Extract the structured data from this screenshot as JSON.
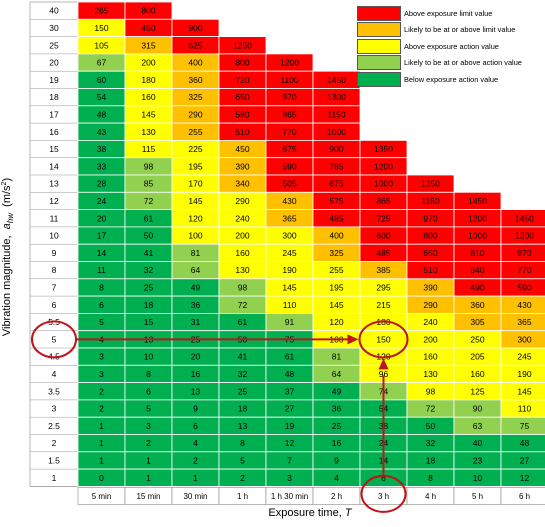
{
  "chart_data": {
    "type": "table",
    "title": "",
    "xlabel": "Exposure time,",
    "xlabel_var": "T",
    "ylabel": "Vibration magnitude,",
    "ylabel_var": "a",
    "ylabel_sub": "hw",
    "ylabel_unit_pre": "(m/s",
    "ylabel_unit_sup": "2",
    "ylabel_unit_post": ")",
    "x_categories": [
      "5 min",
      "15 min",
      "30 min",
      "1 h",
      "1 h 30 min",
      "2 h",
      "3 h",
      "4 h",
      "5 h",
      "6 h"
    ],
    "y_categories": [
      "40",
      "30",
      "25",
      "20",
      "19",
      "18",
      "17",
      "16",
      "15",
      "14",
      "13",
      "12",
      "11",
      "10",
      "9",
      "8",
      "7",
      "6",
      "5.5",
      "5",
      "4.5",
      "4",
      "3.5",
      "3",
      "2.5",
      "2",
      "1.5",
      "1"
    ],
    "cells": [
      [
        "265",
        "800",
        "",
        "",
        "",
        "",
        "",
        "",
        "",
        ""
      ],
      [
        "150",
        "450",
        "900",
        "",
        "",
        "",
        "",
        "",
        "",
        ""
      ],
      [
        "105",
        "315",
        "625",
        "1250",
        "",
        "",
        "",
        "",
        "",
        ""
      ],
      [
        "67",
        "200",
        "400",
        "800",
        "1200",
        "",
        "",
        "",
        "",
        ""
      ],
      [
        "60",
        "180",
        "360",
        "720",
        "1100",
        "1450",
        "",
        "",
        "",
        ""
      ],
      [
        "54",
        "160",
        "325",
        "650",
        "970",
        "1300",
        "",
        "",
        "",
        ""
      ],
      [
        "48",
        "145",
        "290",
        "580",
        "865",
        "1150",
        "",
        "",
        "",
        ""
      ],
      [
        "43",
        "130",
        "255",
        "510",
        "770",
        "1000",
        "",
        "",
        "",
        ""
      ],
      [
        "38",
        "115",
        "225",
        "450",
        "675",
        "900",
        "1350",
        "",
        "",
        ""
      ],
      [
        "33",
        "98",
        "195",
        "390",
        "590",
        "785",
        "1200",
        "",
        "",
        ""
      ],
      [
        "28",
        "85",
        "170",
        "340",
        "505",
        "675",
        "1000",
        "1350",
        "",
        ""
      ],
      [
        "24",
        "72",
        "145",
        "290",
        "430",
        "575",
        "865",
        "1150",
        "1450",
        ""
      ],
      [
        "20",
        "61",
        "120",
        "240",
        "365",
        "485",
        "725",
        "970",
        "1200",
        "1450"
      ],
      [
        "17",
        "50",
        "100",
        "200",
        "300",
        "400",
        "600",
        "800",
        "1000",
        "1200"
      ],
      [
        "14",
        "41",
        "81",
        "160",
        "245",
        "325",
        "485",
        "650",
        "810",
        "970"
      ],
      [
        "11",
        "32",
        "64",
        "130",
        "190",
        "255",
        "385",
        "510",
        "640",
        "770"
      ],
      [
        "8",
        "25",
        "49",
        "98",
        "145",
        "195",
        "295",
        "390",
        "490",
        "590"
      ],
      [
        "6",
        "18",
        "36",
        "72",
        "110",
        "145",
        "215",
        "290",
        "360",
        "430"
      ],
      [
        "5",
        "15",
        "31",
        "61",
        "91",
        "120",
        "180",
        "240",
        "305",
        "365"
      ],
      [
        "4",
        "13",
        "25",
        "50",
        "75",
        "100",
        "150",
        "200",
        "250",
        "300"
      ],
      [
        "3",
        "10",
        "20",
        "41",
        "61",
        "81",
        "120",
        "160",
        "205",
        "245"
      ],
      [
        "3",
        "8",
        "16",
        "32",
        "48",
        "64",
        "96",
        "130",
        "160",
        "190"
      ],
      [
        "2",
        "6",
        "13",
        "25",
        "37",
        "49",
        "74",
        "98",
        "125",
        "145"
      ],
      [
        "2",
        "5",
        "9",
        "18",
        "27",
        "36",
        "54",
        "72",
        "90",
        "110"
      ],
      [
        "1",
        "3",
        "6",
        "13",
        "19",
        "25",
        "38",
        "50",
        "63",
        "75"
      ],
      [
        "1",
        "2",
        "4",
        "8",
        "12",
        "16",
        "24",
        "32",
        "40",
        "48"
      ],
      [
        "1",
        "1",
        "2",
        "5",
        "7",
        "9",
        "14",
        "18",
        "23",
        "27"
      ],
      [
        "0",
        "1",
        "1",
        "2",
        "3",
        "4",
        "6",
        "8",
        "10",
        "12"
      ]
    ],
    "zones": [
      [
        "R",
        "R",
        "",
        "",
        "",
        "",
        "",
        "",
        "",
        ""
      ],
      [
        "Y",
        "R",
        "R",
        "",
        "",
        "",
        "",
        "",
        "",
        ""
      ],
      [
        "Y",
        "O",
        "R",
        "R",
        "",
        "",
        "",
        "",
        "",
        ""
      ],
      [
        "LG",
        "Y",
        "O",
        "R",
        "R",
        "",
        "",
        "",
        "",
        ""
      ],
      [
        "G",
        "Y",
        "O",
        "R",
        "R",
        "R",
        "",
        "",
        "",
        ""
      ],
      [
        "G",
        "Y",
        "O",
        "R",
        "R",
        "R",
        "",
        "",
        "",
        ""
      ],
      [
        "G",
        "Y",
        "O",
        "R",
        "R",
        "R",
        "",
        "",
        "",
        ""
      ],
      [
        "G",
        "Y",
        "O",
        "R",
        "R",
        "R",
        "",
        "",
        "",
        ""
      ],
      [
        "G",
        "Y",
        "Y",
        "O",
        "R",
        "R",
        "R",
        "",
        "",
        ""
      ],
      [
        "G",
        "LG",
        "Y",
        "O",
        "R",
        "R",
        "R",
        "",
        "",
        ""
      ],
      [
        "G",
        "LG",
        "Y",
        "O",
        "R",
        "R",
        "R",
        "R",
        "",
        ""
      ],
      [
        "G",
        "LG",
        "Y",
        "Y",
        "O",
        "R",
        "R",
        "R",
        "R",
        ""
      ],
      [
        "G",
        "G",
        "Y",
        "Y",
        "O",
        "R",
        "R",
        "R",
        "R",
        "R"
      ],
      [
        "G",
        "G",
        "Y",
        "Y",
        "Y",
        "O",
        "R",
        "R",
        "R",
        "R"
      ],
      [
        "G",
        "G",
        "LG",
        "Y",
        "Y",
        "O",
        "R",
        "R",
        "R",
        "R"
      ],
      [
        "G",
        "G",
        "LG",
        "Y",
        "Y",
        "Y",
        "O",
        "R",
        "R",
        "R"
      ],
      [
        "G",
        "G",
        "G",
        "LG",
        "Y",
        "Y",
        "Y",
        "O",
        "R",
        "R"
      ],
      [
        "G",
        "G",
        "G",
        "LG",
        "Y",
        "Y",
        "Y",
        "O",
        "O",
        "O"
      ],
      [
        "G",
        "G",
        "G",
        "G",
        "LG",
        "Y",
        "Y",
        "Y",
        "O",
        "O"
      ],
      [
        "G",
        "G",
        "G",
        "G",
        "G",
        "Y",
        "Y",
        "Y",
        "Y",
        "O"
      ],
      [
        "G",
        "G",
        "G",
        "G",
        "G",
        "LG",
        "Y",
        "Y",
        "Y",
        "Y"
      ],
      [
        "G",
        "G",
        "G",
        "G",
        "G",
        "LG",
        "Y",
        "Y",
        "Y",
        "Y"
      ],
      [
        "G",
        "G",
        "G",
        "G",
        "G",
        "G",
        "LG",
        "Y",
        "Y",
        "Y"
      ],
      [
        "G",
        "G",
        "G",
        "G",
        "G",
        "G",
        "G",
        "LG",
        "LG",
        "Y"
      ],
      [
        "G",
        "G",
        "G",
        "G",
        "G",
        "G",
        "G",
        "G",
        "LG",
        "LG"
      ],
      [
        "G",
        "G",
        "G",
        "G",
        "G",
        "G",
        "G",
        "G",
        "G",
        "G"
      ],
      [
        "G",
        "G",
        "G",
        "G",
        "G",
        "G",
        "G",
        "G",
        "G",
        "G"
      ],
      [
        "G",
        "G",
        "G",
        "G",
        "G",
        "G",
        "G",
        "G",
        "G",
        "G"
      ]
    ],
    "colors": {
      "R": "#ff0000",
      "O": "#ffc000",
      "Y": "#ffff00",
      "LG": "#92d050",
      "G": "#00b050",
      "arrow": "#c0131b"
    },
    "legend": [
      {
        "zone": "R",
        "label": "Above exposure limit value"
      },
      {
        "zone": "O",
        "label": "Likely to be at or above limit value"
      },
      {
        "zone": "Y",
        "label": "Above exposure action value"
      },
      {
        "zone": "LG",
        "label": "Likely to be at or above action value"
      },
      {
        "zone": "G",
        "label": "Below exposure action value"
      }
    ],
    "legend_position": "top-right",
    "annotation": {
      "highlight_x": "3 h",
      "highlight_y": "5",
      "highlight_value": "150"
    }
  }
}
